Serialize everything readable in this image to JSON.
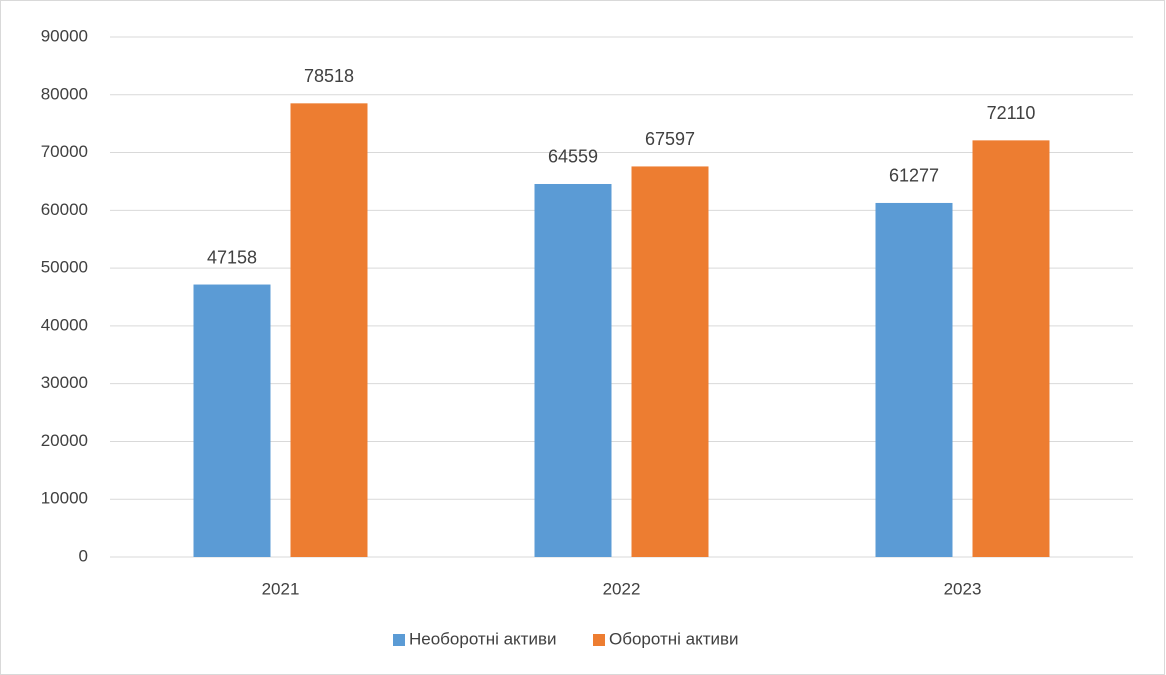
{
  "chart_data": {
    "type": "bar",
    "categories": [
      "2021",
      "2022",
      "2023"
    ],
    "series": [
      {
        "name": "Необоротні активи",
        "color": "#5b9bd5",
        "values": [
          47158,
          64559,
          61277
        ]
      },
      {
        "name": "Оборотні активи",
        "color": "#ed7d31",
        "values": [
          78518,
          67597,
          72110
        ]
      }
    ],
    "ylim": [
      0,
      90000
    ],
    "yticks": [
      0,
      10000,
      20000,
      30000,
      40000,
      50000,
      60000,
      70000,
      80000,
      90000
    ],
    "grid": true,
    "legend": "bottom"
  }
}
